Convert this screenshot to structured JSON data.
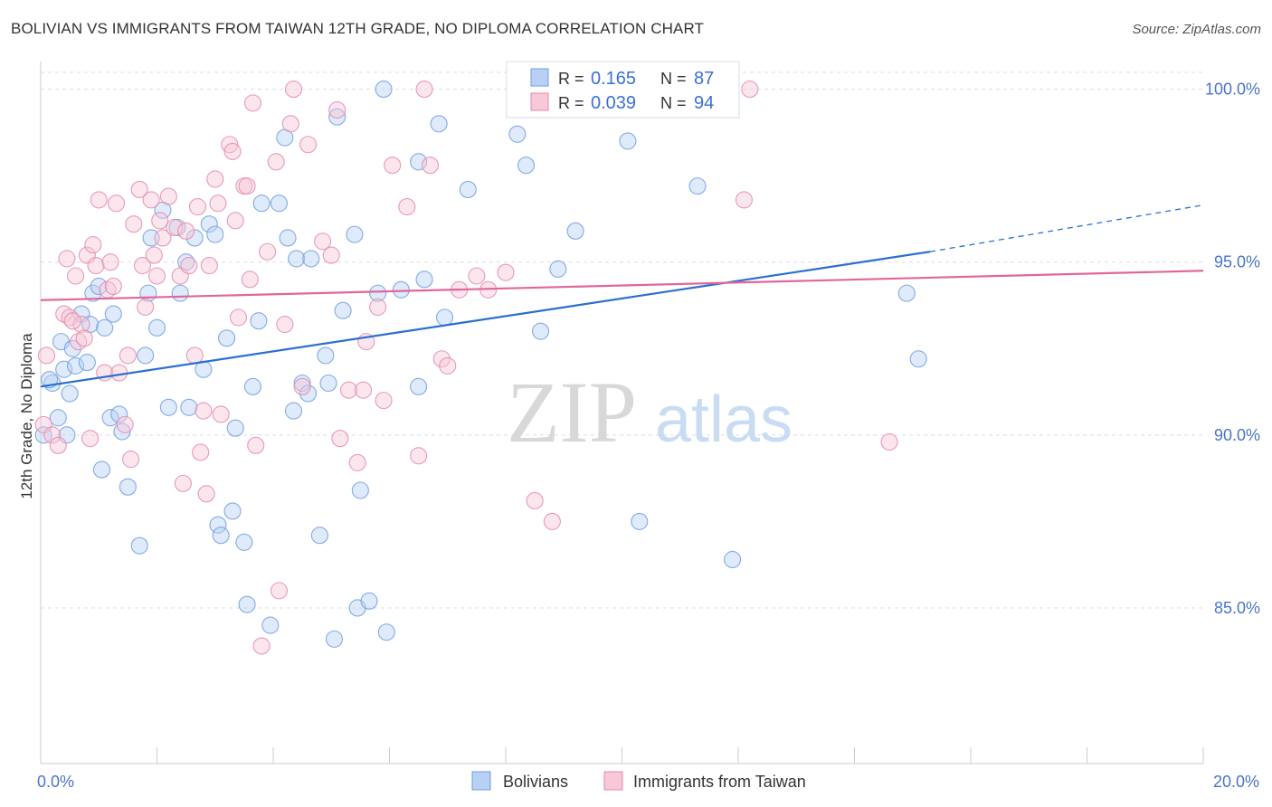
{
  "title": "BOLIVIAN VS IMMIGRANTS FROM TAIWAN 12TH GRADE, NO DIPLOMA CORRELATION CHART",
  "source": "Source: ZipAtlas.com",
  "watermark": {
    "zip": "ZIP",
    "atlas": "atlas"
  },
  "colors": {
    "blue": "#6f9fe0",
    "blue_fill": "#b8d0f3",
    "blue_line": "#2a6fd0",
    "pink": "#e58aab",
    "pink_fill": "#f6c8d8",
    "pink_line": "#e0679a",
    "grid": "#dddddd",
    "tick_text": "#4a74c8"
  },
  "legend": {
    "rows": [
      {
        "r_label": "R =",
        "r_value": "0.165",
        "n_label": "N =",
        "n_value": "87"
      },
      {
        "r_label": "R =",
        "r_value": "0.039",
        "n_label": "N =",
        "n_value": "94"
      }
    ]
  },
  "bottom_legend": [
    "Bolivians",
    "Immigrants from Taiwan"
  ],
  "chart_data": {
    "type": "scatter",
    "title": "BOLIVIAN VS IMMIGRANTS FROM TAIWAN 12TH GRADE, NO DIPLOMA CORRELATION CHART",
    "xlabel": "",
    "ylabel": "12th Grade, No Diploma",
    "xlim": [
      0,
      20
    ],
    "ylim": [
      80.5,
      100.8
    ],
    "x_tick_labels": [
      {
        "value": 0,
        "label": "0.0%"
      },
      {
        "value": 20,
        "label": "20.0%"
      }
    ],
    "y_ticks": [
      {
        "value": 85,
        "label": "85.0%"
      },
      {
        "value": 90,
        "label": "90.0%"
      },
      {
        "value": 95,
        "label": "95.0%"
      },
      {
        "value": 100,
        "label": "100.0%"
      }
    ],
    "x_minor_ticks": [
      0,
      2,
      4,
      6,
      8,
      10,
      12,
      14,
      16,
      18,
      20
    ],
    "grid": true,
    "legend_position": "top-center",
    "series": [
      {
        "name": "Bolivians",
        "color": "#6f9fe0",
        "R": 0.165,
        "N": 87,
        "trend": {
          "x0": 0,
          "y0": 91.4,
          "x1": 15.3,
          "y1": 95.3,
          "dash_to_x": 20,
          "dash_to_y": 96.65
        },
        "points": [
          [
            0.05,
            90.0
          ],
          [
            0.2,
            91.5
          ],
          [
            0.3,
            90.5
          ],
          [
            0.35,
            92.7
          ],
          [
            0.4,
            91.9
          ],
          [
            0.45,
            90.0
          ],
          [
            0.5,
            91.2
          ],
          [
            0.6,
            92.0
          ],
          [
            0.7,
            93.5
          ],
          [
            0.8,
            92.1
          ],
          [
            0.85,
            93.2
          ],
          [
            0.9,
            94.1
          ],
          [
            1.0,
            94.3
          ],
          [
            1.05,
            89.0
          ],
          [
            1.1,
            93.1
          ],
          [
            1.2,
            90.5
          ],
          [
            1.25,
            93.5
          ],
          [
            1.4,
            90.1
          ],
          [
            1.5,
            88.5
          ],
          [
            1.7,
            86.8
          ],
          [
            1.8,
            92.3
          ],
          [
            1.85,
            94.1
          ],
          [
            1.9,
            95.7
          ],
          [
            2.0,
            93.1
          ],
          [
            2.1,
            96.5
          ],
          [
            2.2,
            90.8
          ],
          [
            2.35,
            96.0
          ],
          [
            2.5,
            95.0
          ],
          [
            2.55,
            90.8
          ],
          [
            2.65,
            95.7
          ],
          [
            2.8,
            91.9
          ],
          [
            2.9,
            96.1
          ],
          [
            3.0,
            95.8
          ],
          [
            3.05,
            87.4
          ],
          [
            3.1,
            87.1
          ],
          [
            3.2,
            92.8
          ],
          [
            3.3,
            87.8
          ],
          [
            3.35,
            90.2
          ],
          [
            3.5,
            86.9
          ],
          [
            3.55,
            85.1
          ],
          [
            3.65,
            91.4
          ],
          [
            3.75,
            93.3
          ],
          [
            3.8,
            96.7
          ],
          [
            3.95,
            84.5
          ],
          [
            4.1,
            96.7
          ],
          [
            4.2,
            98.6
          ],
          [
            4.25,
            95.7
          ],
          [
            4.35,
            90.7
          ],
          [
            4.4,
            95.1
          ],
          [
            4.5,
            91.5
          ],
          [
            4.65,
            95.1
          ],
          [
            4.8,
            87.1
          ],
          [
            4.9,
            92.3
          ],
          [
            4.95,
            91.5
          ],
          [
            5.05,
            84.1
          ],
          [
            5.1,
            99.2
          ],
          [
            5.2,
            93.6
          ],
          [
            5.4,
            95.8
          ],
          [
            5.45,
            85.0
          ],
          [
            5.5,
            88.4
          ],
          [
            5.65,
            85.2
          ],
          [
            5.8,
            94.1
          ],
          [
            5.9,
            100.0
          ],
          [
            5.95,
            84.3
          ],
          [
            6.2,
            94.2
          ],
          [
            6.5,
            97.9
          ],
          [
            6.5,
            91.4
          ],
          [
            6.6,
            94.5
          ],
          [
            6.85,
            99.0
          ],
          [
            6.95,
            93.4
          ],
          [
            7.35,
            97.1
          ],
          [
            8.2,
            98.7
          ],
          [
            8.35,
            97.8
          ],
          [
            8.6,
            93.0
          ],
          [
            8.9,
            94.8
          ],
          [
            9.2,
            95.9
          ],
          [
            10.1,
            98.5
          ],
          [
            10.3,
            87.5
          ],
          [
            11.3,
            97.2
          ],
          [
            11.9,
            86.4
          ],
          [
            14.9,
            94.1
          ],
          [
            15.1,
            92.2
          ],
          [
            0.15,
            91.6
          ],
          [
            0.55,
            92.5
          ],
          [
            2.4,
            94.1
          ],
          [
            4.6,
            91.2
          ],
          [
            1.35,
            90.6
          ]
        ]
      },
      {
        "name": "Immigrants from Taiwan",
        "color": "#e58aab",
        "R": 0.039,
        "N": 94,
        "trend": {
          "x0": 0,
          "y0": 93.9,
          "x1": 20,
          "y1": 94.75
        },
        "points": [
          [
            0.05,
            90.3
          ],
          [
            0.1,
            92.3
          ],
          [
            0.2,
            90.0
          ],
          [
            0.3,
            89.7
          ],
          [
            0.4,
            93.5
          ],
          [
            0.5,
            93.4
          ],
          [
            0.6,
            94.6
          ],
          [
            0.65,
            92.7
          ],
          [
            0.7,
            93.2
          ],
          [
            0.75,
            92.8
          ],
          [
            0.8,
            95.2
          ],
          [
            0.9,
            95.5
          ],
          [
            0.95,
            94.9
          ],
          [
            1.0,
            96.8
          ],
          [
            1.1,
            91.8
          ],
          [
            1.15,
            94.2
          ],
          [
            1.2,
            95.0
          ],
          [
            1.3,
            96.7
          ],
          [
            1.35,
            91.8
          ],
          [
            1.45,
            90.3
          ],
          [
            1.5,
            92.3
          ],
          [
            1.6,
            96.1
          ],
          [
            1.7,
            97.1
          ],
          [
            1.75,
            94.9
          ],
          [
            1.8,
            93.7
          ],
          [
            1.9,
            96.8
          ],
          [
            1.95,
            95.2
          ],
          [
            2.0,
            94.6
          ],
          [
            2.1,
            95.7
          ],
          [
            2.2,
            96.9
          ],
          [
            2.3,
            96.0
          ],
          [
            2.4,
            94.6
          ],
          [
            2.45,
            88.6
          ],
          [
            2.5,
            95.9
          ],
          [
            2.55,
            94.9
          ],
          [
            2.7,
            96.6
          ],
          [
            2.75,
            89.5
          ],
          [
            2.8,
            90.7
          ],
          [
            2.85,
            88.3
          ],
          [
            2.9,
            94.9
          ],
          [
            3.0,
            97.4
          ],
          [
            3.05,
            96.7
          ],
          [
            3.1,
            90.6
          ],
          [
            3.25,
            98.4
          ],
          [
            3.3,
            98.2
          ],
          [
            3.35,
            96.2
          ],
          [
            3.4,
            93.4
          ],
          [
            3.5,
            97.2
          ],
          [
            3.55,
            97.2
          ],
          [
            3.65,
            99.6
          ],
          [
            3.7,
            89.7
          ],
          [
            3.8,
            83.9
          ],
          [
            3.9,
            95.3
          ],
          [
            4.05,
            97.9
          ],
          [
            4.1,
            85.5
          ],
          [
            4.3,
            99.0
          ],
          [
            4.35,
            100.0
          ],
          [
            4.5,
            91.4
          ],
          [
            4.6,
            98.4
          ],
          [
            4.85,
            95.6
          ],
          [
            5.0,
            95.2
          ],
          [
            5.1,
            99.4
          ],
          [
            5.15,
            89.9
          ],
          [
            5.3,
            91.3
          ],
          [
            5.45,
            89.2
          ],
          [
            5.55,
            91.3
          ],
          [
            5.6,
            92.7
          ],
          [
            5.8,
            93.7
          ],
          [
            5.9,
            91.0
          ],
          [
            6.05,
            97.8
          ],
          [
            6.3,
            96.6
          ],
          [
            6.5,
            89.4
          ],
          [
            6.6,
            100.0
          ],
          [
            6.7,
            97.8
          ],
          [
            6.9,
            92.2
          ],
          [
            7.0,
            92.0
          ],
          [
            7.2,
            94.2
          ],
          [
            7.5,
            94.6
          ],
          [
            7.7,
            94.2
          ],
          [
            8.0,
            94.7
          ],
          [
            8.5,
            88.1
          ],
          [
            8.8,
            87.5
          ],
          [
            12.1,
            96.8
          ],
          [
            12.2,
            100.0
          ],
          [
            14.6,
            89.8
          ],
          [
            1.25,
            94.3
          ],
          [
            2.65,
            92.3
          ],
          [
            0.55,
            93.3
          ],
          [
            0.45,
            95.1
          ],
          [
            3.6,
            94.5
          ],
          [
            4.2,
            93.2
          ],
          [
            1.55,
            89.3
          ],
          [
            2.05,
            96.2
          ],
          [
            0.85,
            89.9
          ]
        ]
      }
    ]
  }
}
